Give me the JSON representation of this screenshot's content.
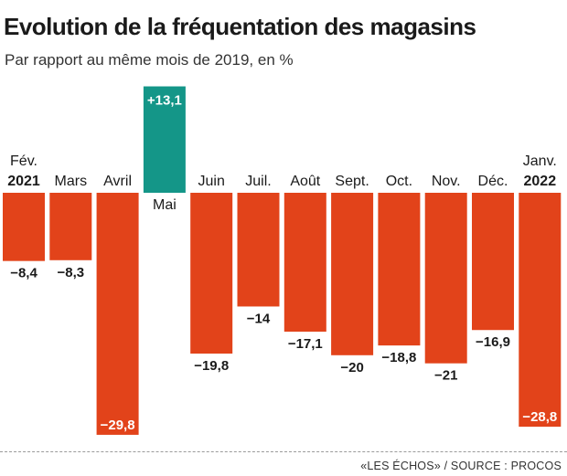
{
  "title": "Evolution de la fréquentation des magasins",
  "subtitle": "Par rapport au même mois de 2019, en %",
  "source": "«LES ÉCHOS» / SOURCE : PROCOS",
  "colors": {
    "negative": "#e2431a",
    "positive": "#149688",
    "text": "#1a1a1a"
  },
  "chart_data": {
    "type": "bar",
    "categories": [
      "Fév.",
      "Mars",
      "Avril",
      "Mai",
      "Juin",
      "Juil.",
      "Août",
      "Sept.",
      "Oct.",
      "Nov.",
      "Déc.",
      "Janv."
    ],
    "year_labels": [
      "2021",
      "",
      "",
      "",
      "",
      "",
      "",
      "",
      "",
      "",
      "",
      "2022"
    ],
    "values": [
      -8.4,
      -8.3,
      -29.8,
      13.1,
      -19.8,
      -14,
      -17.1,
      -20,
      -18.8,
      -21,
      -16.9,
      -28.8
    ],
    "value_labels": [
      "−8,4",
      "−8,3",
      "−29,8",
      "+13,1",
      "−19,8",
      "−14",
      "−17,1",
      "−20",
      "−18,8",
      "−21",
      "−16,9",
      "−28,8"
    ]
  }
}
